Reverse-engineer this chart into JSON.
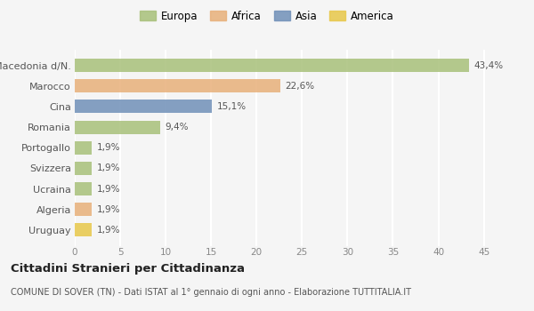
{
  "categories": [
    "Macedonia d/N.",
    "Marocco",
    "Cina",
    "Romania",
    "Portogallo",
    "Svizzera",
    "Ucraina",
    "Algeria",
    "Uruguay"
  ],
  "values": [
    43.4,
    22.6,
    15.1,
    9.4,
    1.9,
    1.9,
    1.9,
    1.9,
    1.9
  ],
  "labels": [
    "43,4%",
    "22,6%",
    "15,1%",
    "9,4%",
    "1,9%",
    "1,9%",
    "1,9%",
    "1,9%",
    "1,9%"
  ],
  "colors": [
    "#a8c07a",
    "#e8b07a",
    "#7090b8",
    "#a8c07a",
    "#a8c07a",
    "#a8c07a",
    "#a8c07a",
    "#e8b07a",
    "#e8c84a"
  ],
  "legend": [
    {
      "label": "Europa",
      "color": "#a8c07a"
    },
    {
      "label": "Africa",
      "color": "#e8b07a"
    },
    {
      "label": "Asia",
      "color": "#7090b8"
    },
    {
      "label": "America",
      "color": "#e8c84a"
    }
  ],
  "xlim": [
    0,
    47
  ],
  "xticks": [
    0,
    5,
    10,
    15,
    20,
    25,
    30,
    35,
    40,
    45
  ],
  "title_main": "Cittadini Stranieri per Cittadinanza",
  "title_sub": "COMUNE DI SOVER (TN) - Dati ISTAT al 1° gennaio di ogni anno - Elaborazione TUTTITALIA.IT",
  "background_color": "#f5f5f5",
  "grid_color": "#ffffff",
  "bar_alpha": 0.85,
  "bar_height": 0.65
}
